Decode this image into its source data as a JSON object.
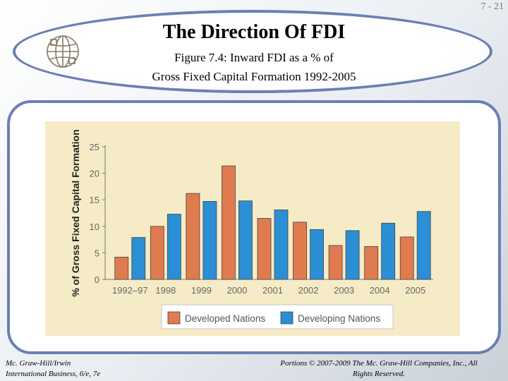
{
  "slide_number": "7 - 21",
  "header": {
    "title": "The Direction Of FDI",
    "subtitle_line1": "Figure 7.4: Inward FDI as a % of",
    "subtitle_line2": "Gross Fixed Capital Formation 1992-2005"
  },
  "footer": {
    "left_line1": "Mc. Graw-Hill/Irwin",
    "left_line2": "International Business, 6/e, 7e",
    "right_line1": "Portions © 2007-2009 The Mc. Graw-Hill Companies, Inc., All",
    "right_line2": "Rights Reserved."
  },
  "colors": {
    "developed": "#e07b4f",
    "developing": "#2b8fd6",
    "panel": "#f5ebc6",
    "frame": "#6b7fb2"
  },
  "chart_data": {
    "type": "bar",
    "title": "Inward FDI as a % of Gross Fixed Capital Formation 1992-2005",
    "ylabel": "% of Gross Fixed Capital Formation",
    "xlabel": "",
    "ylim": [
      0,
      25
    ],
    "yticks": [
      0,
      5,
      10,
      15,
      20,
      25
    ],
    "grid": false,
    "legend_position": "bottom",
    "categories": [
      "1992–97",
      "1998",
      "1999",
      "2000",
      "2001",
      "2002",
      "2003",
      "2004",
      "2005"
    ],
    "series": [
      {
        "name": "Developed Nations",
        "values": [
          4.2,
          10.0,
          16.2,
          21.4,
          11.5,
          10.8,
          6.4,
          6.2,
          8.0
        ]
      },
      {
        "name": "Developing Nations",
        "values": [
          7.9,
          12.3,
          14.7,
          14.8,
          13.1,
          9.4,
          9.2,
          10.6,
          12.8
        ]
      }
    ]
  }
}
